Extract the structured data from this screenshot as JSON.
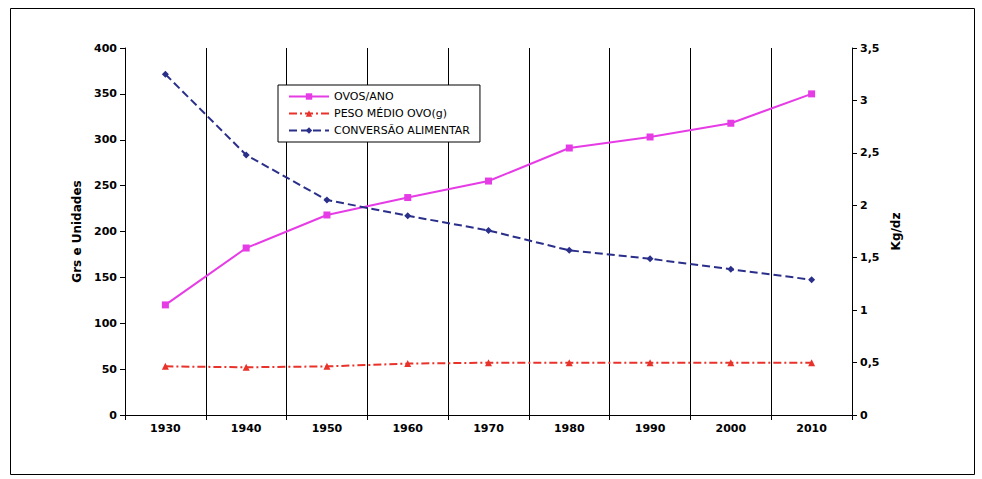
{
  "chart_data": {
    "type": "line",
    "categories": [
      "1930",
      "1940",
      "1950",
      "1960",
      "1970",
      "1980",
      "1990",
      "2000",
      "2010"
    ],
    "y_label": "Grs e Unidades",
    "y2_label": "Kg/dz",
    "ylim": [
      0,
      400
    ],
    "yticks": [
      0,
      50,
      100,
      150,
      200,
      250,
      300,
      350,
      400
    ],
    "y2lim": [
      0,
      3.5
    ],
    "y2ticks": [
      0,
      {
        "value": 0.5,
        "label": "0,5"
      },
      1,
      {
        "value": 1.5,
        "label": "1,5"
      },
      2,
      {
        "value": 2.5,
        "label": "2,5"
      },
      3,
      {
        "value": 3.5,
        "label": "3,5"
      }
    ],
    "grid": "x",
    "legend": "top",
    "series": [
      {
        "name": "OVOS/ANO",
        "color": "#e63ce6",
        "marker": "square",
        "line_style": "solid",
        "values": [
          120,
          182,
          218,
          237,
          255,
          291,
          303,
          318,
          350
        ]
      },
      {
        "name": "PESO MÉDIO OVO(g)",
        "color": "#e8322a",
        "marker": "triangle",
        "line_style": "dashdot",
        "values": [
          53,
          52,
          53,
          56,
          57,
          57,
          57,
          57,
          57
        ]
      },
      {
        "name": "CONVERSÃO ALIMENTAR",
        "color": "#2a2f8a",
        "marker": "diamond",
        "line_style": "dashed",
        "axis": "y2",
        "values": [
          3.25,
          2.48,
          2.05,
          1.9,
          1.76,
          1.57,
          1.49,
          1.39,
          1.29
        ]
      }
    ]
  }
}
